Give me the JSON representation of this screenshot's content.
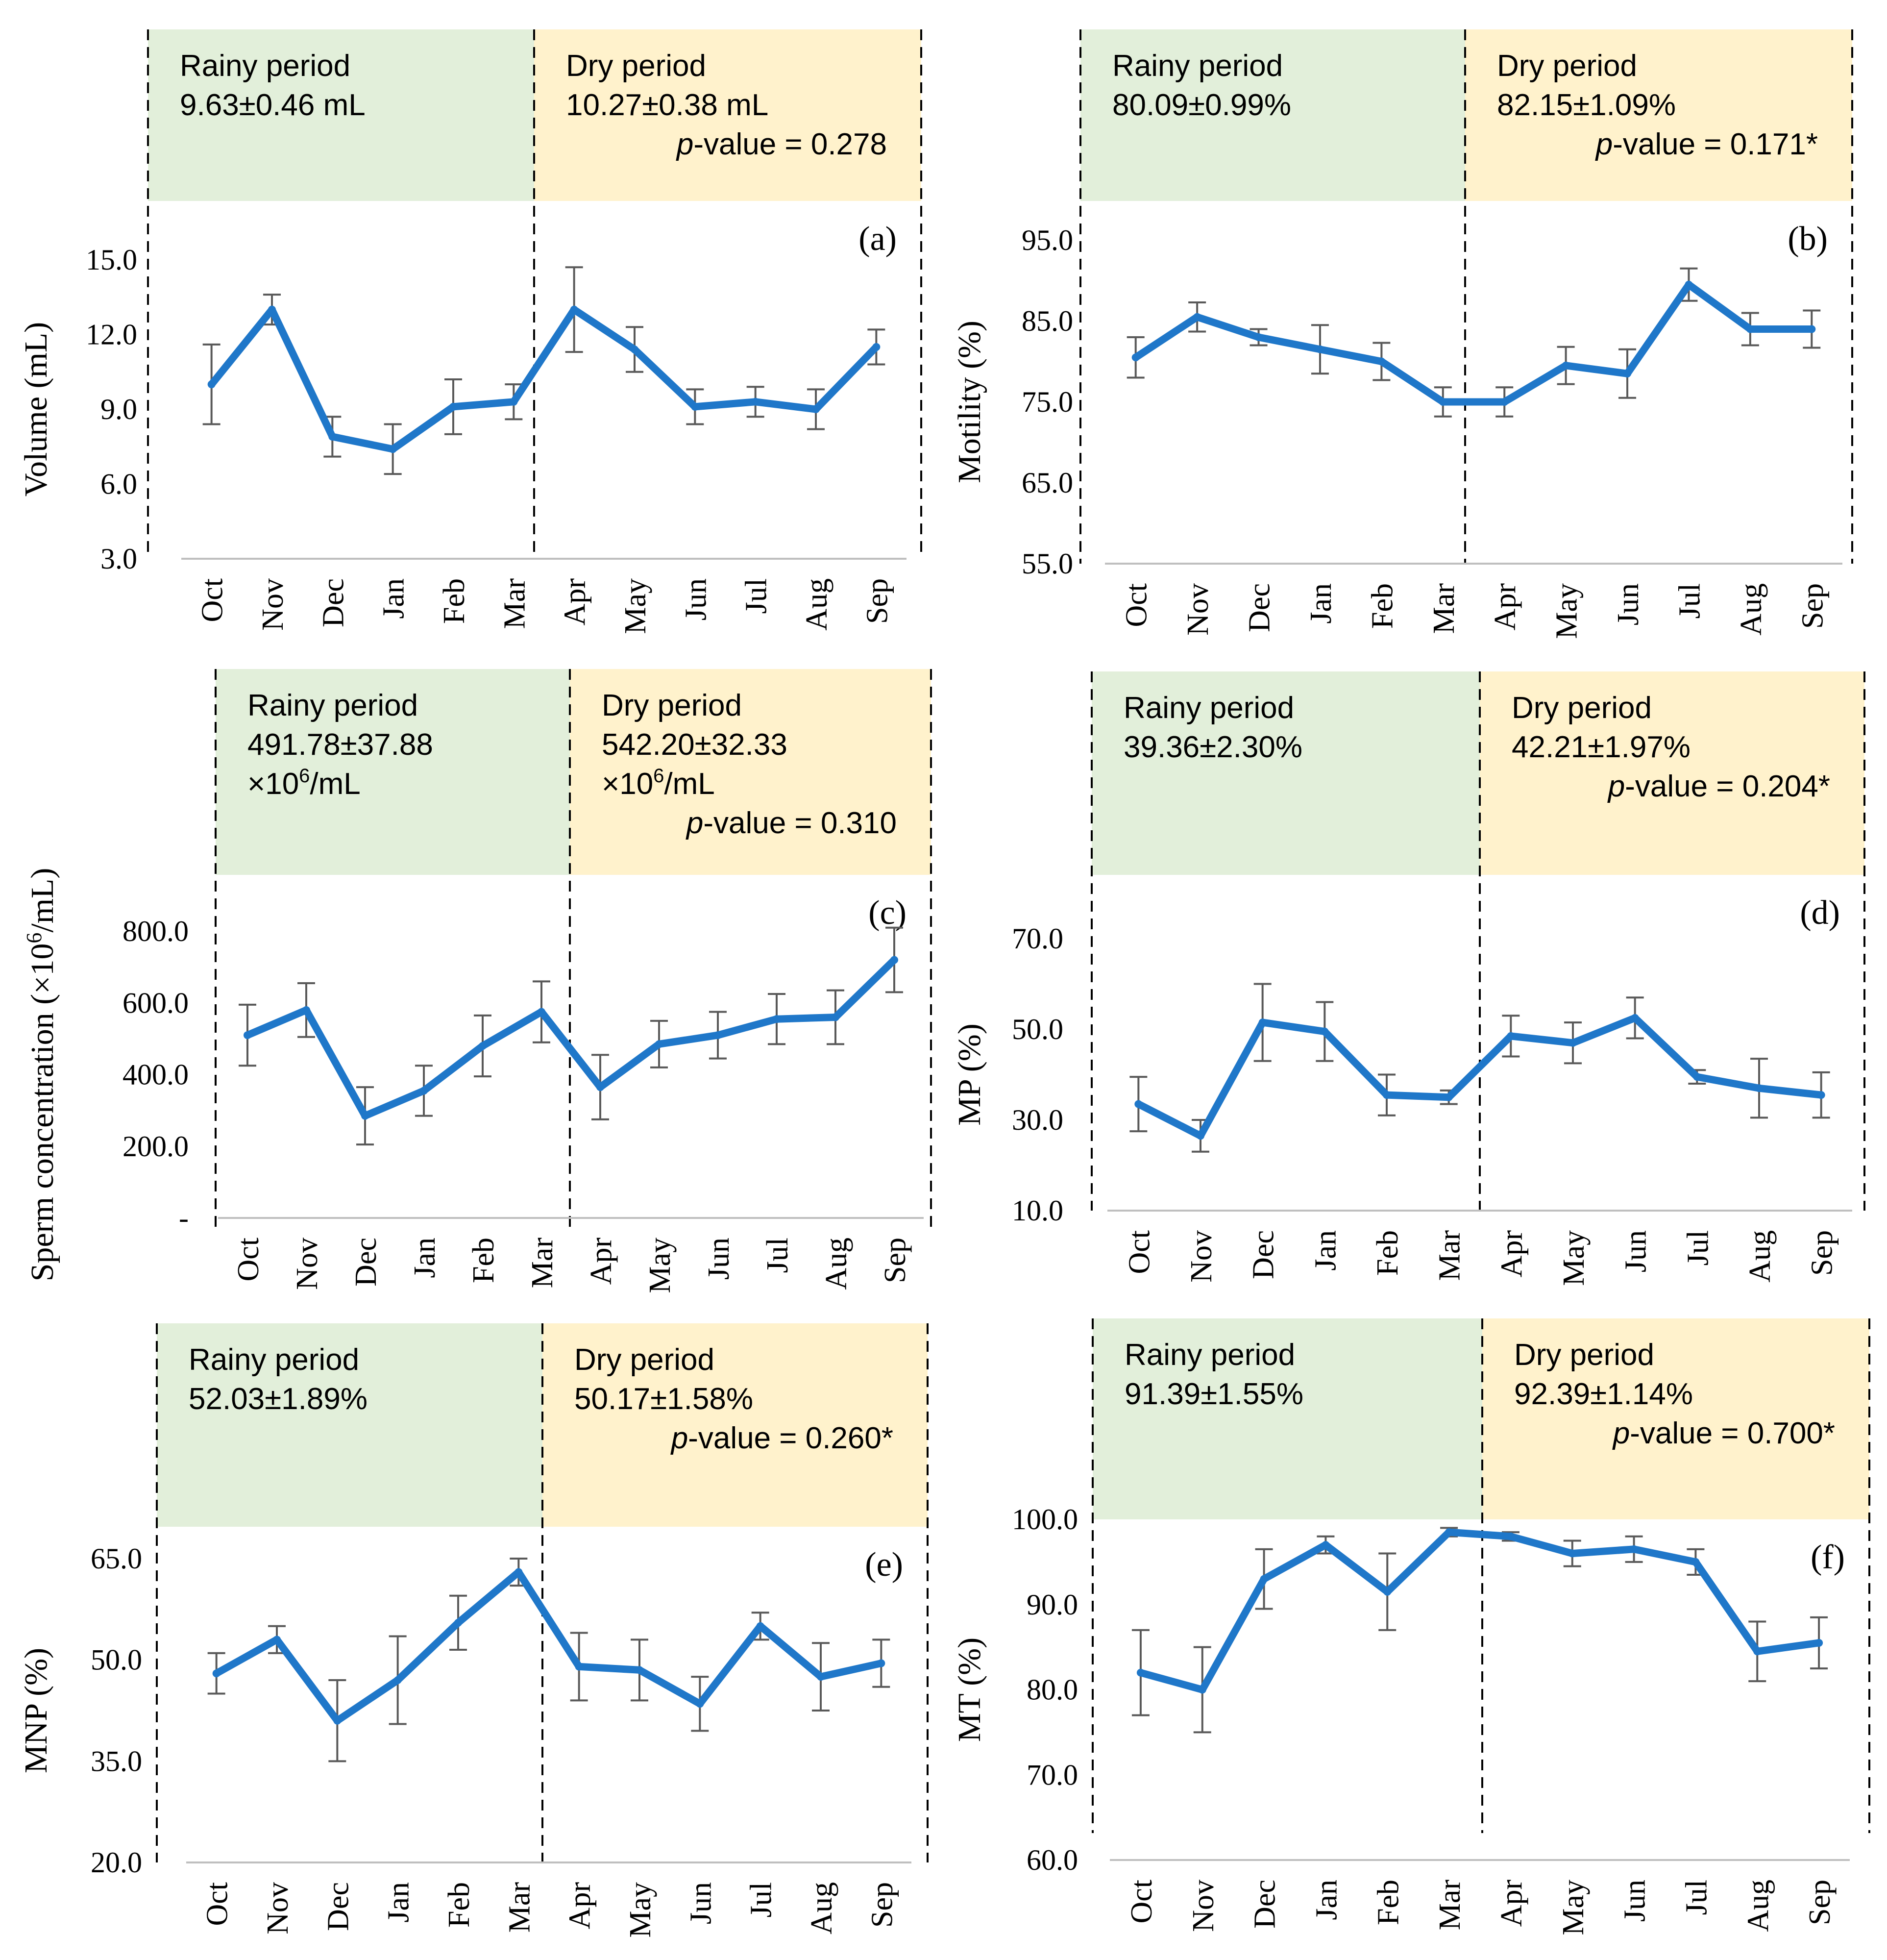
{
  "colors": {
    "rainy_band": "#e2efda",
    "dry_band": "#fff2cc",
    "series_line": "#1f77c9",
    "error_bar": "#595959",
    "axis_line": "#bfbfbf",
    "divider": "#000000",
    "text": "#000000"
  },
  "chart_data": [
    {
      "id": "a",
      "type": "line",
      "panel_label": "(a)",
      "ylabel": "Volume (mL)",
      "ylabel_sup": "",
      "ylabel_suffix": "",
      "categories": [
        "Oct",
        "Nov",
        "Dec",
        "Jan",
        "Feb",
        "Mar",
        "Apr",
        "May",
        "Jun",
        "Jul",
        "Aug",
        "Sep"
      ],
      "values": [
        10.0,
        13.0,
        7.9,
        7.4,
        9.1,
        9.3,
        13.0,
        11.4,
        9.1,
        9.3,
        9.0,
        11.5
      ],
      "errors": [
        1.6,
        0.6,
        0.8,
        1.0,
        1.1,
        0.7,
        1.7,
        0.9,
        0.7,
        0.6,
        0.8,
        0.7
      ],
      "ylim": [
        3.0,
        15.0
      ],
      "yticks": [
        "3.0",
        "6.0",
        "9.0",
        "12.0",
        "15.0"
      ],
      "rainy": {
        "label": "Rainy period",
        "lines": [
          "9.63±0.46 mL"
        ]
      },
      "dry": {
        "label": "Dry period",
        "lines": [
          "10.27±0.38 mL"
        ],
        "pvalue_prefix": "p",
        "pvalue": "-value = 0.278"
      }
    },
    {
      "id": "b",
      "type": "line",
      "panel_label": "(b)",
      "ylabel": "Motility (%)",
      "ylabel_sup": "",
      "ylabel_suffix": "",
      "categories": [
        "Oct",
        "Nov",
        "Dec",
        "Jan",
        "Feb",
        "Mar",
        "Apr",
        "May",
        "Jun",
        "Jul",
        "Aug",
        "Sep"
      ],
      "values": [
        80.5,
        85.5,
        83.0,
        81.5,
        80.0,
        75.0,
        75.0,
        79.5,
        78.5,
        89.5,
        84.0,
        84.0
      ],
      "errors": [
        2.5,
        1.8,
        1.0,
        3.0,
        2.3,
        1.8,
        1.8,
        2.3,
        3.0,
        2.0,
        2.0,
        2.3
      ],
      "ylim": [
        55.0,
        95.0
      ],
      "yticks": [
        "55.0",
        "65.0",
        "75.0",
        "85.0",
        "95.0"
      ],
      "rainy": {
        "label": "Rainy period",
        "lines": [
          "80.09±0.99%"
        ]
      },
      "dry": {
        "label": "Dry period",
        "lines": [
          "82.15±1.09%"
        ],
        "pvalue_prefix": "p",
        "pvalue": "-value = 0.171*"
      }
    },
    {
      "id": "c",
      "type": "line",
      "panel_label": "(c)",
      "ylabel": "Sperm concentration (×10",
      "ylabel_sup": "6",
      "ylabel_suffix": "/mL)",
      "categories": [
        "Oct",
        "Nov",
        "Dec",
        "Jan",
        "Feb",
        "Mar",
        "Apr",
        "May",
        "Jun",
        "Jul",
        "Aug",
        "Sep"
      ],
      "values": [
        510,
        580,
        285,
        355,
        480,
        575,
        365,
        485,
        510,
        555,
        560,
        720
      ],
      "errors": [
        85,
        75,
        80,
        70,
        85,
        85,
        90,
        65,
        65,
        70,
        75,
        90
      ],
      "ylim": [
        0,
        800
      ],
      "yticks": [
        "-",
        "200.0",
        "400.0",
        "600.0",
        "800.0"
      ],
      "rainy": {
        "label": "Rainy period",
        "lines": [
          "491.78±37.88"
        ],
        "unit_prefix": "×10",
        "unit_sup": "6",
        "unit_suffix": "/mL"
      },
      "dry": {
        "label": "Dry period",
        "lines": [
          "542.20±32.33"
        ],
        "unit_prefix": "×10",
        "unit_sup": "6",
        "unit_suffix": "/mL",
        "pvalue_prefix": "p",
        "pvalue": "-value = 0.310"
      }
    },
    {
      "id": "d",
      "type": "line",
      "panel_label": "(d)",
      "ylabel": "MP (%)",
      "ylabel_sup": "",
      "ylabel_suffix": "",
      "categories": [
        "Oct",
        "Nov",
        "Dec",
        "Jan",
        "Feb",
        "Mar",
        "Apr",
        "May",
        "Jun",
        "Jul",
        "Aug",
        "Sep"
      ],
      "values": [
        33.5,
        26.5,
        51.5,
        49.5,
        35.5,
        35.0,
        48.5,
        47.0,
        52.5,
        39.5,
        37.0,
        35.5
      ],
      "errors": [
        6.0,
        3.5,
        8.5,
        6.5,
        4.5,
        1.5,
        4.5,
        4.5,
        4.5,
        1.5,
        6.5,
        5.0
      ],
      "ylim": [
        10.0,
        70.0
      ],
      "yticks": [
        "10.0",
        "30.0",
        "50.0",
        "70.0"
      ],
      "rainy": {
        "label": "Rainy period",
        "lines": [
          "39.36±2.30%"
        ]
      },
      "dry": {
        "label": "Dry period",
        "lines": [
          "42.21±1.97%"
        ],
        "pvalue_prefix": "p",
        "pvalue": "-value = 0.204*"
      }
    },
    {
      "id": "e",
      "type": "line",
      "panel_label": "(e)",
      "ylabel": "MNP (%)",
      "ylabel_sup": "",
      "ylabel_suffix": "",
      "categories": [
        "Oct",
        "Nov",
        "Dec",
        "Jan",
        "Feb",
        "Mar",
        "Apr",
        "May",
        "Jun",
        "Jul",
        "Aug",
        "Sep"
      ],
      "values": [
        48.0,
        53.0,
        41.0,
        47.0,
        55.5,
        63.0,
        49.0,
        48.5,
        43.5,
        55.0,
        47.5,
        49.5
      ],
      "errors": [
        3.0,
        2.0,
        6.0,
        6.5,
        4.0,
        2.0,
        5.0,
        4.5,
        4.0,
        2.0,
        5.0,
        3.5
      ],
      "ylim": [
        20.0,
        65.0
      ],
      "yticks": [
        "20.0",
        "35.0",
        "50.0",
        "65.0"
      ],
      "rainy": {
        "label": "Rainy period",
        "lines": [
          "52.03±1.89%"
        ]
      },
      "dry": {
        "label": "Dry period",
        "lines": [
          "50.17±1.58%"
        ],
        "pvalue_prefix": "p",
        "pvalue": "-value = 0.260*"
      }
    },
    {
      "id": "f",
      "type": "line",
      "panel_label": "(f)",
      "ylabel": "MT (%)",
      "ylabel_sup": "",
      "ylabel_suffix": "",
      "categories": [
        "Oct",
        "Nov",
        "Dec",
        "Jan",
        "Feb",
        "Mar",
        "Apr",
        "May",
        "Jun",
        "Jul",
        "Aug",
        "Sep"
      ],
      "values": [
        82.0,
        80.0,
        93.0,
        97.0,
        91.5,
        98.5,
        98.0,
        96.0,
        96.5,
        95.0,
        84.5,
        85.5
      ],
      "errors": [
        5.0,
        5.0,
        3.5,
        1.0,
        4.5,
        0.5,
        0.5,
        1.5,
        1.5,
        1.5,
        3.5,
        3.0
      ],
      "ylim": [
        60.0,
        100.0
      ],
      "yticks": [
        "60.0",
        "70.0",
        "80.0",
        "90.0",
        "100.0"
      ],
      "rainy": {
        "label": "Rainy period",
        "lines": [
          "91.39±1.55%"
        ]
      },
      "dry": {
        "label": "Dry period",
        "lines": [
          "92.39±1.14%"
        ],
        "pvalue_prefix": "p",
        "pvalue": "-value = 0.700*"
      }
    }
  ]
}
